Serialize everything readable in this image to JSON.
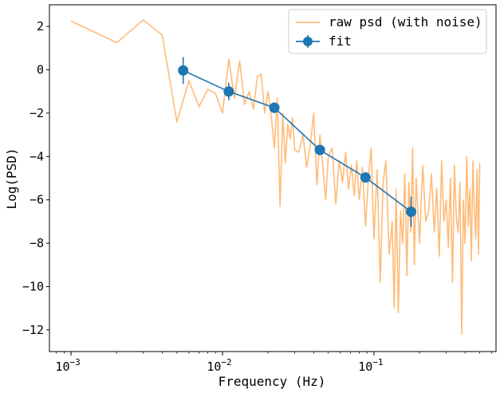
{
  "chart_data": {
    "type": "line",
    "title": "",
    "xlabel": "Frequency (Hz)",
    "ylabel": "Log(PSD)",
    "xscale": "log",
    "xlim": [
      0.00072,
      0.64
    ],
    "ylim": [
      -13.0,
      3.0
    ],
    "grid": false,
    "legend_placement": "top-right",
    "x_ticks": [
      {
        "value": 0.001,
        "base": "10",
        "exp": "−3"
      },
      {
        "value": 0.01,
        "base": "10",
        "exp": "−2"
      },
      {
        "value": 0.1,
        "base": "10",
        "exp": "−1"
      }
    ],
    "y_ticks": [
      {
        "value": 2,
        "label": "2"
      },
      {
        "value": 0,
        "label": "0"
      },
      {
        "value": -2,
        "label": "−2"
      },
      {
        "value": -4,
        "label": "−4"
      },
      {
        "value": -6,
        "label": "−6"
      },
      {
        "value": -8,
        "label": "−8"
      },
      {
        "value": -10,
        "label": "−10"
      },
      {
        "value": -12,
        "label": "−12"
      }
    ],
    "series": [
      {
        "name": "raw psd (with noise)",
        "kind": "line",
        "color": "#ffbb78",
        "x": [
          0.001,
          0.002,
          0.003,
          0.004,
          0.005,
          0.006,
          0.007,
          0.008,
          0.009,
          0.01,
          0.011,
          0.012,
          0.013,
          0.014,
          0.015,
          0.016,
          0.017,
          0.018,
          0.019,
          0.02,
          0.021,
          0.022,
          0.023,
          0.024,
          0.025,
          0.026,
          0.027,
          0.028,
          0.029,
          0.03,
          0.032,
          0.034,
          0.036,
          0.038,
          0.04,
          0.042,
          0.044,
          0.046,
          0.048,
          0.05,
          0.053,
          0.056,
          0.059,
          0.062,
          0.065,
          0.068,
          0.071,
          0.074,
          0.077,
          0.08,
          0.084,
          0.088,
          0.092,
          0.096,
          0.1,
          0.105,
          0.11,
          0.115,
          0.12,
          0.126,
          0.132,
          0.136,
          0.14,
          0.145,
          0.15,
          0.155,
          0.16,
          0.165,
          0.17,
          0.175,
          0.18,
          0.185,
          0.19,
          0.2,
          0.21,
          0.22,
          0.23,
          0.24,
          0.25,
          0.26,
          0.27,
          0.28,
          0.29,
          0.3,
          0.31,
          0.32,
          0.33,
          0.34,
          0.35,
          0.36,
          0.37,
          0.38,
          0.39,
          0.4,
          0.41,
          0.42,
          0.43,
          0.44,
          0.45,
          0.46,
          0.47,
          0.48,
          0.49,
          0.5
        ],
        "y": [
          2.25,
          1.25,
          2.3,
          1.6,
          -2.4,
          -0.5,
          -1.7,
          -0.9,
          -1.1,
          -2.0,
          0.5,
          -1.3,
          0.4,
          -1.6,
          -1.0,
          -1.8,
          -0.3,
          -0.2,
          -2.0,
          -1.0,
          -2.2,
          -3.6,
          -1.3,
          -6.3,
          -2.0,
          -4.3,
          -2.5,
          -3.2,
          -2.2,
          -3.7,
          -3.8,
          -3.0,
          -4.5,
          -3.5,
          -2.0,
          -5.3,
          -3.0,
          -4.5,
          -6.0,
          -4.0,
          -3.6,
          -6.2,
          -4.2,
          -5.2,
          -3.8,
          -5.5,
          -4.4,
          -5.8,
          -4.2,
          -6.0,
          -4.5,
          -7.2,
          -5.0,
          -3.6,
          -7.8,
          -4.6,
          -9.8,
          -5.2,
          -4.2,
          -8.5,
          -7.0,
          -11.0,
          -5.5,
          -11.2,
          -6.5,
          -8.0,
          -4.8,
          -9.5,
          -5.2,
          -7.5,
          -3.6,
          -9.0,
          -5.0,
          -8.0,
          -4.4,
          -7.0,
          -6.5,
          -4.8,
          -7.5,
          -5.5,
          -8.6,
          -4.2,
          -7.0,
          -6.0,
          -8.2,
          -5.0,
          -9.8,
          -4.4,
          -6.8,
          -7.5,
          -5.2,
          -12.2,
          -6.0,
          -8.0,
          -4.0,
          -7.2,
          -5.5,
          -8.8,
          -4.2,
          -6.5,
          -7.8,
          -4.6,
          -8.5,
          -4.3
        ],
        "errors": []
      },
      {
        "name": "fit",
        "kind": "line-markers-errorbars",
        "color": "#1f77b4",
        "x": [
          0.0055,
          0.011,
          0.022,
          0.044,
          0.088,
          0.176
        ],
        "y": [
          -0.03,
          -1.0,
          -1.75,
          -3.7,
          -4.97,
          -6.55
        ],
        "errors": [
          0.62,
          0.4,
          0.25,
          0.2,
          0.18,
          0.7
        ]
      }
    ]
  }
}
